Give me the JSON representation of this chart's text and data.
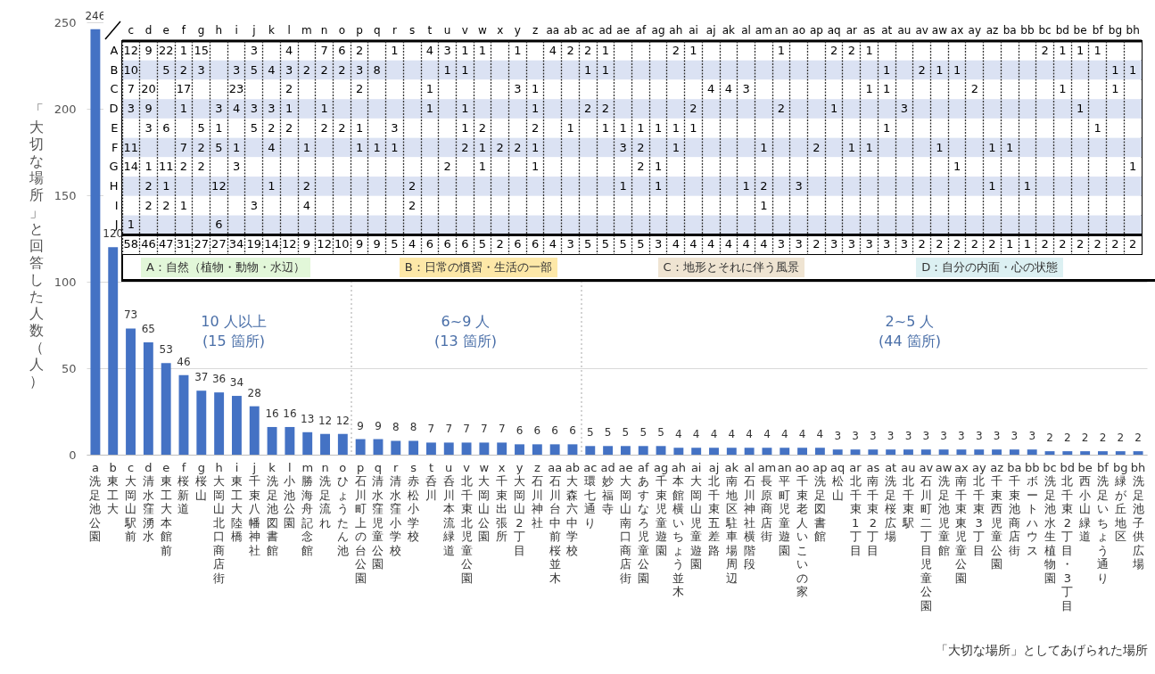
{
  "chart_data": [
    {
      "type": "bar",
      "ylabel": "「大切な場所」と回答した人数（人）",
      "xlabel": "「大切な場所」としてあげられた場所",
      "color": "#4472c4",
      "ylim": [
        0,
        250
      ],
      "yticks": [
        0,
        50,
        100,
        150,
        200,
        250
      ],
      "grid": "y",
      "data_labels": true,
      "categories": [
        "a 洗足池公園",
        "b 東工大",
        "c 大岡山駅前",
        "d 清水窪湧水",
        "e 東工大本館前",
        "f 桜新道",
        "g 桜山",
        "h 大岡山北口商店街",
        "i 東工大陸橋",
        "j 千束八幡神社",
        "k 洗足池図書館",
        "l 小池公園",
        "m 勝海舟記念館",
        "n 洗足流れ",
        "o ひょうたん池",
        "p 石川町上の台公園",
        "q 清水窪児童公園",
        "r 清水窪小学校",
        "s 赤松小学校",
        "t 呑川",
        "u 呑川本流緑道",
        "v 北千束北児童公園",
        "w 大岡山公園",
        "x 千束出張所",
        "y 大岡山2丁目",
        "z 石川神社",
        "aa 石川台中前桜並木",
        "ab 大森六中学校",
        "ac 環七通り",
        "ad 妙福寺",
        "ae 大岡山南口商店街",
        "af あすなろ児童公園",
        "ag 千束児童遊園",
        "ah 本館横いちょう並木",
        "ai 大岡山児童遊園",
        "aj 北千束五差路",
        "ak 南地区駐車場周辺",
        "al 石川神社横階段",
        "am 長原商店街",
        "an 平町児童遊園",
        "ao 千束老人いこいの家",
        "ap 洗足図書館",
        "aq 松山",
        "ar 北千束1丁目",
        "as 南千束2丁目",
        "at 洗足桜広場",
        "au 北千束駅",
        "av 石川町二丁目児童公園",
        "aw 洗足池児童館",
        "ax 南千束東児童公園",
        "ay 北千束3丁目",
        "az 千束西児童公園",
        "ba 千束池商店街",
        "bb ボートハウス",
        "bc 洗足池水生植物園",
        "bd 北千束2丁目・3丁目",
        "be 西小山緑道",
        "bf 洗足いちょう通り",
        "bg 緑が丘地区",
        "bh 洗足池子供広場"
      ],
      "values": [
        246,
        120,
        73,
        65,
        53,
        46,
        37,
        36,
        34,
        28,
        16,
        16,
        13,
        12,
        12,
        9,
        9,
        8,
        8,
        7,
        7,
        7,
        7,
        7,
        6,
        6,
        6,
        6,
        5,
        5,
        5,
        5,
        5,
        4,
        4,
        4,
        4,
        4,
        4,
        4,
        4,
        4,
        3,
        3,
        3,
        3,
        3,
        3,
        3,
        3,
        3,
        3,
        3,
        3,
        2,
        2,
        2,
        2,
        2,
        2
      ],
      "annotations": [
        "10 人以上\n(15 箇所)",
        "6~9 人\n(13 箇所)",
        "2~5 人\n(44 箇所)"
      ]
    },
    {
      "type": "heatmap",
      "data_labels": true,
      "categories": [
        "c",
        "d",
        "e",
        "f",
        "g",
        "h",
        "i",
        "j",
        "k",
        "l",
        "m",
        "n",
        "o",
        "p",
        "q",
        "r",
        "s",
        "t",
        "u",
        "v",
        "w",
        "x",
        "y",
        "z",
        "aa",
        "ab",
        "ac",
        "ad",
        "ae",
        "af",
        "ag",
        "ah",
        "ai",
        "aj",
        "ak",
        "al",
        "am",
        "an",
        "ao",
        "ap",
        "aq",
        "ar",
        "as",
        "at",
        "au",
        "av",
        "aw",
        "ax",
        "ay",
        "az",
        "ba",
        "bb",
        "bc",
        "bd",
        "be",
        "bf",
        "bg",
        "bh"
      ],
      "y_categories": [
        "A",
        "B",
        "C",
        "D",
        "E",
        "F",
        "G",
        "H",
        "I",
        "J",
        null
      ],
      "cells": [
        [
          12,
          9,
          22,
          1,
          15,
          null,
          null,
          3,
          null,
          4,
          null,
          7,
          6,
          2,
          null,
          1,
          null,
          4,
          3,
          1,
          1,
          null,
          1,
          null,
          4,
          2,
          2,
          1,
          null,
          null,
          null,
          2,
          1,
          null,
          null,
          null,
          null,
          1,
          null,
          null,
          2,
          2,
          1,
          null,
          null,
          null,
          null,
          null,
          null,
          null,
          null,
          null,
          2,
          1,
          1,
          1,
          null,
          null
        ],
        [
          10,
          null,
          5,
          2,
          3,
          null,
          3,
          5,
          4,
          3,
          2,
          2,
          2,
          3,
          8,
          null,
          null,
          null,
          1,
          1,
          null,
          null,
          null,
          null,
          null,
          null,
          1,
          1,
          null,
          null,
          null,
          null,
          null,
          null,
          null,
          null,
          null,
          null,
          null,
          null,
          null,
          null,
          null,
          1,
          null,
          2,
          1,
          1,
          null,
          null,
          null,
          null,
          null,
          null,
          null,
          null,
          1,
          1
        ],
        [
          7,
          20,
          null,
          17,
          null,
          null,
          23,
          null,
          null,
          2,
          null,
          null,
          null,
          2,
          null,
          null,
          null,
          1,
          null,
          null,
          null,
          null,
          3,
          1,
          null,
          null,
          null,
          null,
          null,
          null,
          null,
          null,
          null,
          4,
          4,
          3,
          null,
          null,
          null,
          null,
          null,
          null,
          1,
          1,
          null,
          null,
          null,
          null,
          2,
          null,
          null,
          null,
          null,
          1,
          null,
          null,
          1,
          null
        ],
        [
          3,
          9,
          null,
          1,
          null,
          3,
          4,
          3,
          3,
          1,
          null,
          1,
          null,
          null,
          null,
          null,
          null,
          1,
          null,
          1,
          null,
          null,
          null,
          1,
          null,
          null,
          2,
          2,
          null,
          null,
          null,
          null,
          2,
          null,
          null,
          null,
          null,
          2,
          null,
          null,
          1,
          null,
          null,
          null,
          3,
          null,
          null,
          null,
          null,
          null,
          null,
          null,
          null,
          null,
          1,
          null,
          null,
          null
        ],
        [
          null,
          3,
          6,
          null,
          5,
          1,
          null,
          5,
          2,
          2,
          null,
          2,
          2,
          1,
          null,
          3,
          null,
          null,
          null,
          1,
          2,
          null,
          null,
          2,
          null,
          1,
          null,
          1,
          1,
          1,
          1,
          1,
          1,
          null,
          null,
          null,
          null,
          null,
          null,
          null,
          null,
          null,
          null,
          1,
          null,
          null,
          null,
          null,
          null,
          null,
          null,
          null,
          null,
          null,
          null,
          1,
          null,
          null
        ],
        [
          11,
          null,
          null,
          7,
          2,
          5,
          1,
          null,
          4,
          null,
          1,
          null,
          null,
          1,
          1,
          1,
          null,
          null,
          null,
          2,
          1,
          2,
          2,
          1,
          null,
          null,
          null,
          null,
          3,
          2,
          null,
          1,
          null,
          null,
          null,
          null,
          1,
          null,
          null,
          2,
          null,
          1,
          1,
          null,
          null,
          null,
          1,
          null,
          null,
          1,
          1,
          null,
          null,
          null,
          null,
          null,
          null,
          null
        ],
        [
          14,
          1,
          11,
          2,
          2,
          null,
          3,
          null,
          null,
          null,
          null,
          null,
          null,
          null,
          null,
          null,
          null,
          null,
          2,
          null,
          1,
          null,
          null,
          1,
          null,
          null,
          null,
          null,
          null,
          2,
          1,
          null,
          null,
          null,
          null,
          null,
          null,
          null,
          null,
          null,
          null,
          null,
          null,
          null,
          null,
          null,
          null,
          1,
          null,
          null,
          null,
          null,
          null,
          null,
          null,
          null,
          null,
          1
        ],
        [
          null,
          2,
          1,
          null,
          null,
          12,
          null,
          null,
          1,
          null,
          2,
          null,
          null,
          null,
          null,
          null,
          2,
          null,
          null,
          null,
          null,
          null,
          null,
          null,
          null,
          null,
          null,
          null,
          1,
          null,
          1,
          null,
          null,
          null,
          null,
          1,
          2,
          null,
          3,
          null,
          null,
          null,
          null,
          null,
          null,
          null,
          null,
          null,
          null,
          1,
          null,
          1,
          null,
          null,
          null,
          null,
          null,
          null
        ],
        [
          null,
          2,
          2,
          1,
          null,
          null,
          null,
          3,
          null,
          null,
          4,
          null,
          null,
          null,
          null,
          null,
          2,
          null,
          null,
          null,
          null,
          null,
          null,
          null,
          null,
          null,
          null,
          null,
          null,
          null,
          null,
          null,
          null,
          null,
          null,
          null,
          1,
          null,
          null,
          null,
          null,
          null,
          null,
          null,
          null,
          null,
          null,
          null,
          null,
          null,
          null,
          null,
          null,
          null,
          null,
          null,
          null,
          null
        ],
        [
          1,
          null,
          null,
          null,
          null,
          6,
          null,
          null,
          null,
          null,
          null,
          null,
          null,
          null,
          null,
          null,
          null,
          null,
          null,
          null,
          null,
          null,
          null,
          null,
          null,
          null,
          null,
          null,
          null,
          null,
          null,
          null,
          null,
          null,
          null,
          null,
          null,
          null,
          null,
          null,
          null,
          null,
          null,
          null,
          null,
          null,
          null,
          null,
          null,
          null,
          null,
          null,
          null,
          null,
          null,
          null,
          null,
          null
        ],
        [
          58,
          46,
          47,
          31,
          27,
          27,
          34,
          19,
          14,
          12,
          9,
          12,
          10,
          9,
          9,
          5,
          4,
          6,
          6,
          6,
          5,
          2,
          6,
          6,
          4,
          3,
          5,
          5,
          5,
          5,
          3,
          4,
          4,
          4,
          4,
          4,
          4,
          3,
          3,
          2,
          3,
          3,
          3,
          3,
          3,
          2,
          2,
          2,
          2,
          2,
          1,
          1,
          2,
          2,
          2,
          2,
          2,
          2
        ]
      ],
      "annotations": [
        "A：自然（植物・動物・水辺）",
        "B：日常の慣習・生活の一部",
        "C：地形とそれに伴う風景",
        "D：自分の内面・心の状態"
      ]
    }
  ]
}
